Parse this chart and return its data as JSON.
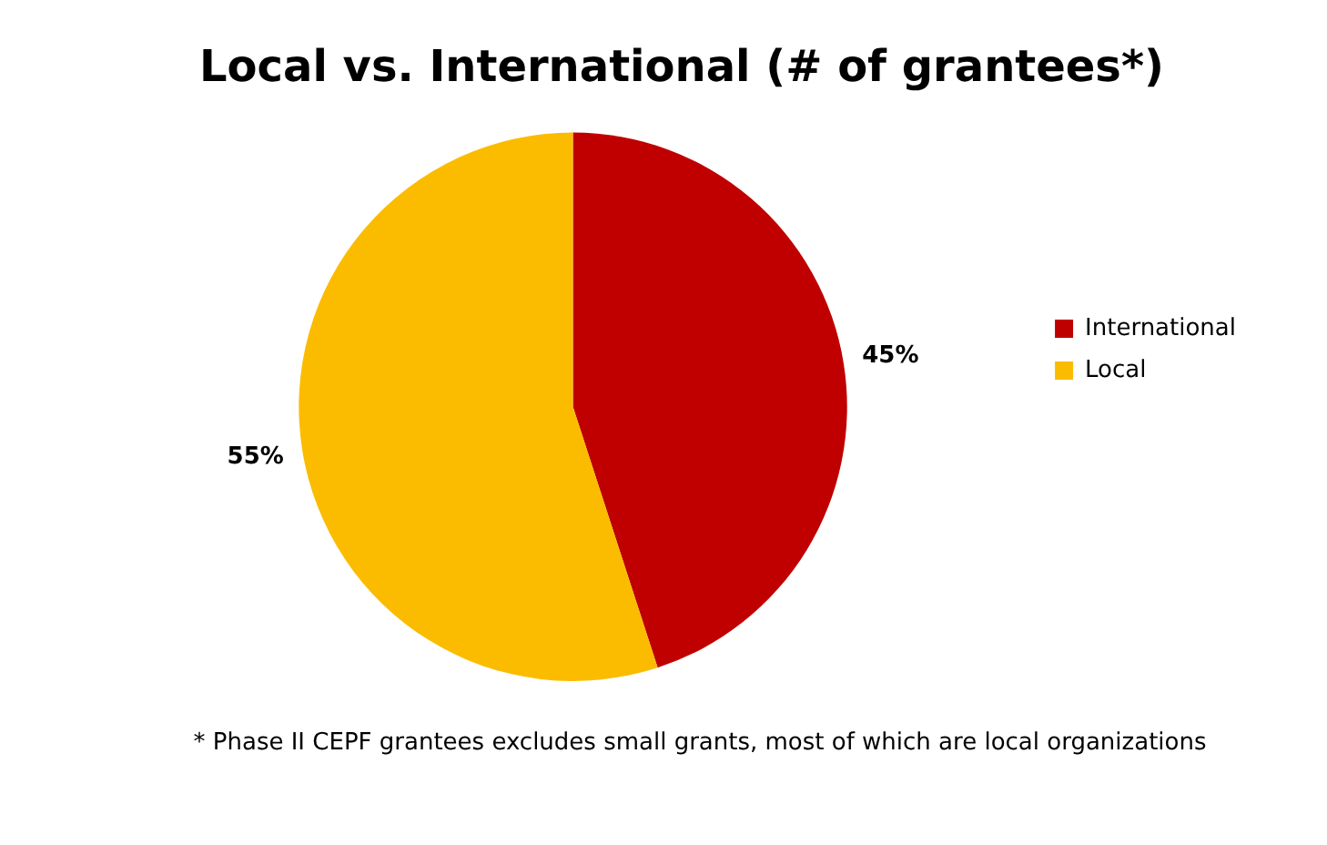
{
  "chart_data": {
    "type": "pie",
    "title": "Local vs. International (# of grantees*)",
    "categories": [
      "International",
      "Local"
    ],
    "values": [
      45,
      55
    ],
    "colors": [
      "#c00000",
      "#fbbc00"
    ],
    "value_labels": [
      "45%",
      "55%"
    ],
    "legend": "right",
    "annotations": [
      "* Phase II CEPF grantees excludes small grants, most of which are local organizations"
    ]
  }
}
